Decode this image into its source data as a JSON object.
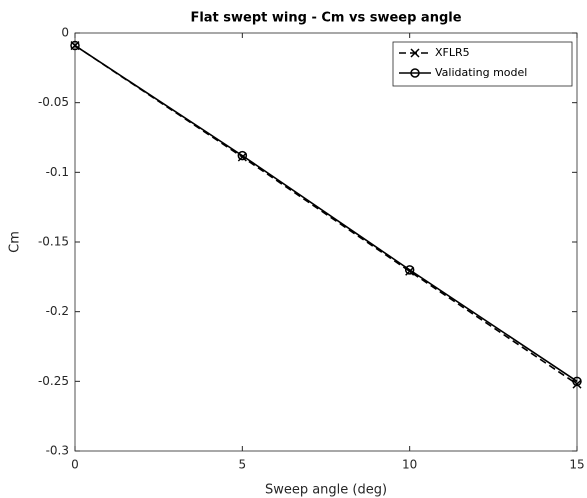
{
  "chart_data": {
    "type": "line",
    "title": "Flat swept wing - Cm vs sweep angle",
    "xlabel": "Sweep angle (deg)",
    "ylabel": "Cm",
    "x": [
      0,
      5,
      10,
      15
    ],
    "series": [
      {
        "name": "XFLR5",
        "color": "#000000",
        "dash": true,
        "marker": "x",
        "values": [
          -0.009,
          -0.089,
          -0.171,
          -0.252
        ]
      },
      {
        "name": "Validating model",
        "color": "#000000",
        "dash": false,
        "marker": "o",
        "values": [
          -0.009,
          -0.088,
          -0.17,
          -0.25
        ]
      }
    ],
    "xlim": [
      0,
      15
    ],
    "xticks": [
      0,
      5,
      10,
      15
    ],
    "ylim": [
      -0.3,
      0
    ],
    "yticks": [
      -0.3,
      -0.25,
      -0.2,
      -0.15,
      -0.1,
      -0.05,
      0
    ],
    "grid": false,
    "legend": "upper right"
  }
}
